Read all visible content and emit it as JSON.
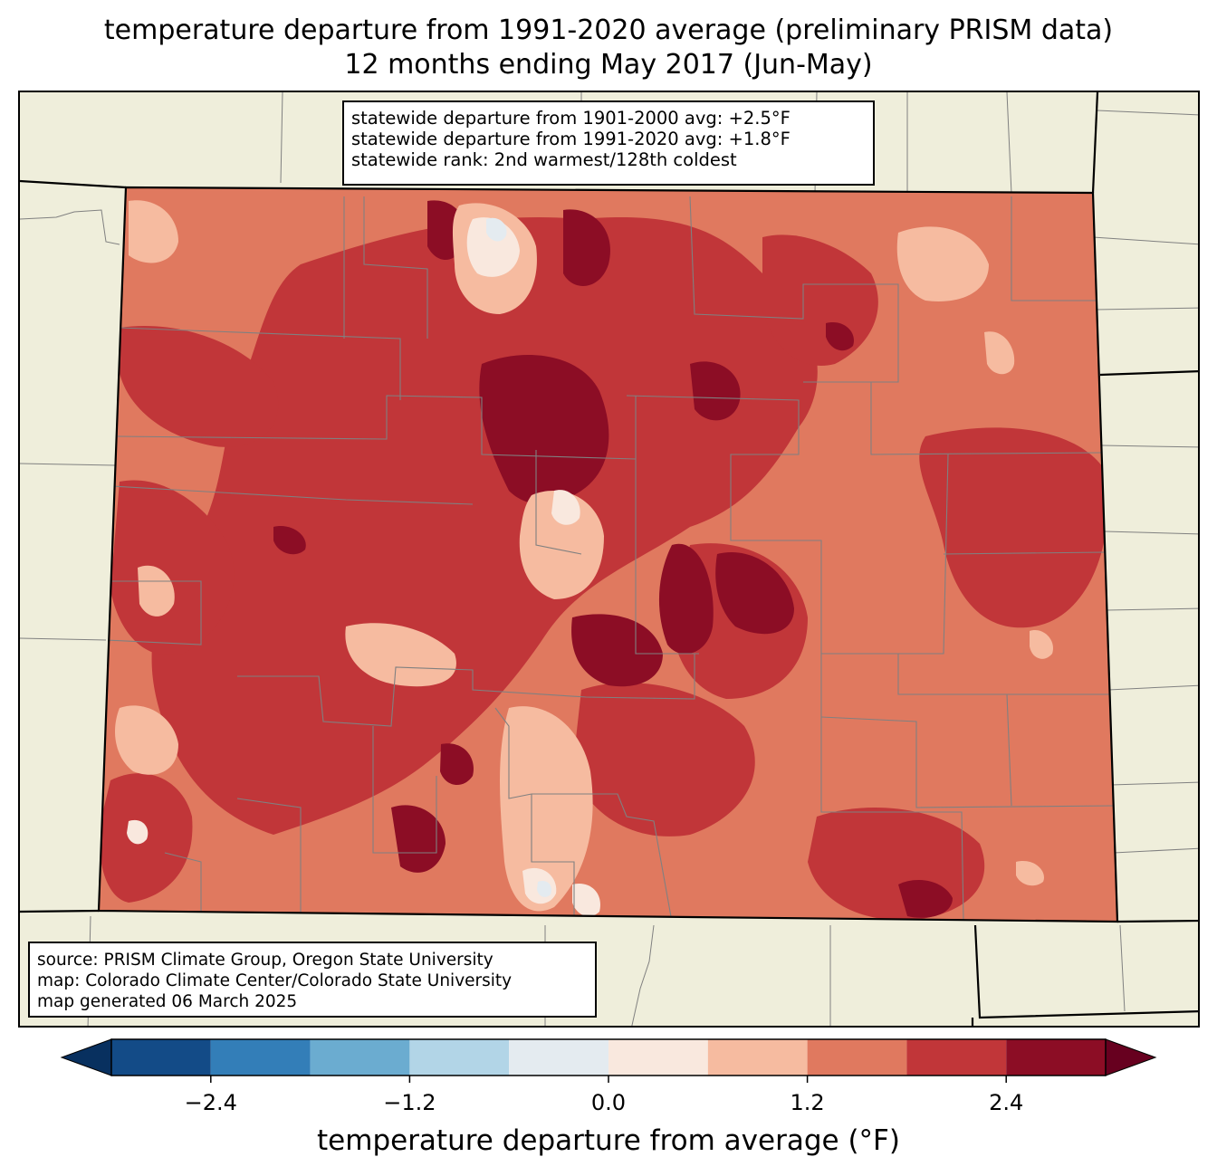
{
  "title": {
    "line1": "temperature departure from 1991-2020 average (preliminary PRISM data)",
    "line2": "12 months ending May 2017 (Jun-May)"
  },
  "stats": {
    "line1": "statewide departure from 1901-2000 avg: +2.5°F",
    "line2": "statewide departure from 1991-2020 avg: +1.8°F",
    "line3": "statewide rank: 2nd warmest/128th coldest"
  },
  "credits": {
    "line1": "source: PRISM Climate Group, Oregon State University",
    "line2": "map: Colorado Climate Center/Colorado State University",
    "line3": "map generated 06 March 2025"
  },
  "colorbar": {
    "label": "temperature departure from average (°F)",
    "ticks": [
      "−2.4",
      "−1.2",
      "0.0",
      "1.2",
      "2.4"
    ],
    "levels": [
      -3.0,
      -2.4,
      -1.8,
      -1.2,
      -0.6,
      0.0,
      0.6,
      1.2,
      1.8,
      2.4,
      3.0
    ],
    "colors": [
      "#134b87",
      "#337eb8",
      "#6bacd0",
      "#b2d5e7",
      "#e4ebf0",
      "#f9e8de",
      "#f6bba0",
      "#e0795f",
      "#c13639",
      "#8c0d25"
    ],
    "under_color": "#08305f",
    "over_color": "#67001f"
  },
  "map_colors": {
    "land_background": "#efeedb",
    "county_lines": "#808080",
    "state_lines": "#000000"
  }
}
